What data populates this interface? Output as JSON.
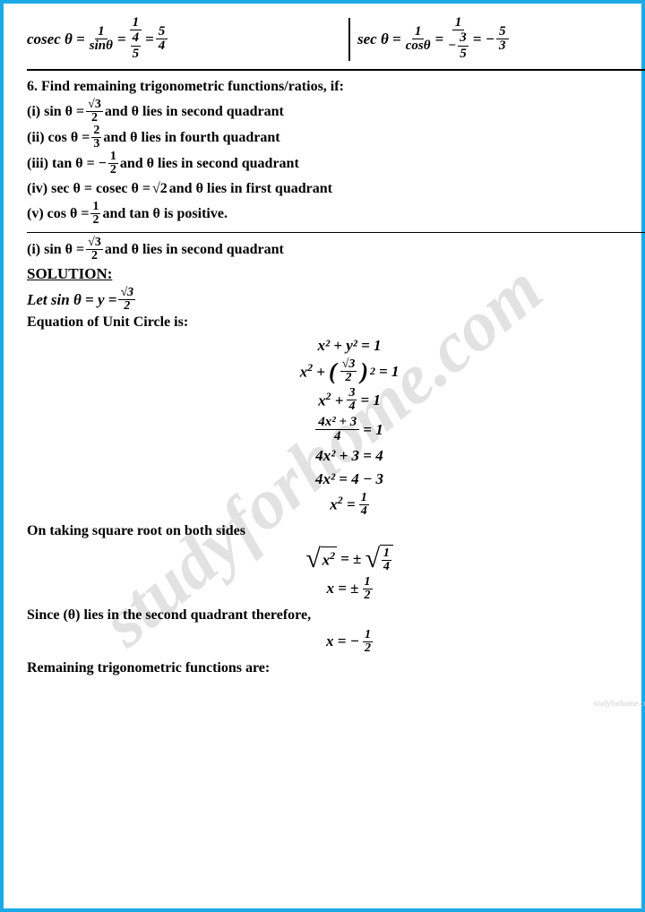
{
  "watermark": "studyforhome.com",
  "small_wm": "studyforhome.com",
  "top": {
    "cosec": {
      "lhs": "cosec θ = ",
      "f1n": "1",
      "f1d": "sinθ",
      "f2n": "1",
      "f2dn": "4",
      "f2dd": "5",
      "f3n": "5",
      "f3d": "4"
    },
    "sec": {
      "lhs": "sec θ = ",
      "f1n": "1",
      "f1d": "cosθ",
      "f2n": "1",
      "f2dn": "3",
      "f2dd": "5",
      "f3n": "5",
      "f3d": "3"
    }
  },
  "q6": {
    "title": "6. Find remaining trigonometric functions/ratios, if:",
    "i": {
      "pre": "(i) sin θ = ",
      "n": "√3",
      "d": "2",
      "post": " and θ lies in second quadrant"
    },
    "ii": {
      "pre": "(ii) cos θ = ",
      "n": "2",
      "d": "3",
      "post": " and θ lies in fourth quadrant"
    },
    "iii": {
      "pre": "(iii) tan θ = − ",
      "n": "1",
      "d": "2",
      "post": " and θ lies in second quadrant"
    },
    "iv": {
      "pre": "(iv) sec θ = cosec θ = ",
      "val": "√2",
      "post": " and θ lies in first quadrant"
    },
    "v": {
      "pre": "(v) cos θ = ",
      "n": "1",
      "d": "2",
      "post": " and tan θ is positive."
    }
  },
  "restate": {
    "pre": "(i) sin θ = ",
    "n": "√3",
    "d": "2",
    "post": " and θ lies in second quadrant"
  },
  "solution_label": "SOLUTION:",
  "let": {
    "pre": "Let sin θ = y = ",
    "n": "√3",
    "d": "2"
  },
  "labels": {
    "eq_unit": "Equation of Unit Circle is:",
    "sqrt_both": "On taking square root on both sides",
    "since": "Since (θ) lies in the second quadrant therefore,",
    "remaining": "Remaining trigonometric functions are:"
  },
  "m": {
    "l1": "x² + y² = 1",
    "l2n": "√3",
    "l2d": "2",
    "l3n": "3",
    "l3d": "4",
    "l4n": "4x² + 3",
    "l4d": "4",
    "l5": "4x² + 3 = 4",
    "l6": "4x² = 4 − 3",
    "l7n": "1",
    "l7d": "4"
  },
  "m2": {
    "l1n": "1",
    "l1d": "4",
    "l2n": "1",
    "l2d": "2"
  },
  "m3": {
    "n": "1",
    "d": "2"
  }
}
